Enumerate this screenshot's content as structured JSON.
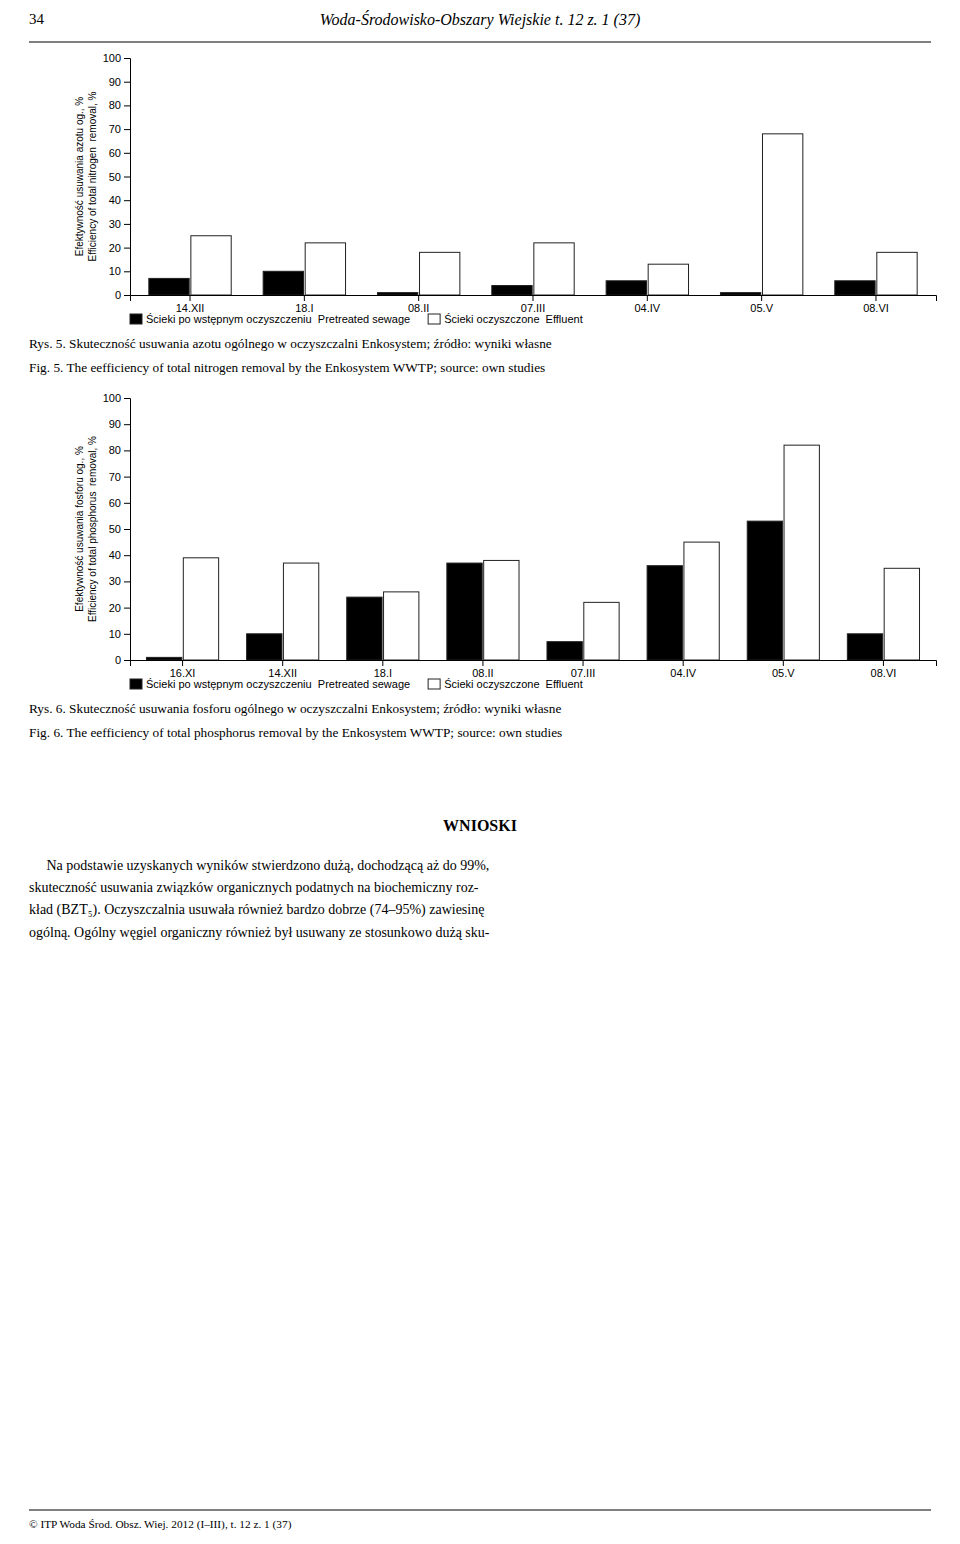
{
  "header": {
    "number": "34",
    "title": "Woda-Środowisko-Obszary Wiejskie t. 12 z. 1 (37)"
  },
  "chart_data": [
    {
      "type": "bar",
      "title": "Rys. 5. Skuteczność usuwania azotu ogólnego w oczyszczalni Enkosystem; źródło: wyniki własne",
      "subtitle": "Fig. 5. The eefficiency of total nitrogen removal by the Enkosystem WWTP; source: own studies",
      "ylabel": [
        "Efektywność usuwania azotu og., %",
        "Efficiency of total nitrogen  removal, %"
      ],
      "categories": [
        "14.XII",
        "18.I",
        "08.II",
        "07.III",
        "04.IV",
        "05.V",
        "08.VI"
      ],
      "series": [
        {
          "name": "Ścieki po wstępnym oczyszczeniu  Pretreated sewage",
          "color": "#000000",
          "values": [
            7,
            10,
            1,
            4,
            6,
            1,
            6
          ]
        },
        {
          "name": "Ścieki oczyszczone  Effluent",
          "color": "#ffffff",
          "values": [
            25,
            22,
            18,
            22,
            13,
            68,
            18
          ]
        }
      ],
      "ylim": [
        0,
        100
      ],
      "yticks": [
        0,
        10,
        20,
        30,
        40,
        50,
        60,
        70,
        80,
        90,
        100
      ],
      "grid": false,
      "legend": "bottom"
    },
    {
      "type": "bar",
      "title": "Rys. 6. Skuteczność usuwania fosforu ogólnego w oczyszczalni Enkosystem; źródło: wyniki własne",
      "subtitle": "Fig. 6. The eefficiency of total phosphorus removal by the Enkosystem WWTP; source: own studies",
      "ylabel": [
        "Efektywność usuwania fosforu og., %",
        "Efficiency of total phosphorus  removal, %"
      ],
      "categories": [
        "16.XI",
        "14.XII",
        "18.I",
        "08.II",
        "07.III",
        "04.IV",
        "05.V",
        "08.VI"
      ],
      "series": [
        {
          "name": "Ścieki po wstępnym oczyszczeniu  Pretreated sewage",
          "color": "#000000",
          "values": [
            1,
            10,
            24,
            37,
            7,
            36,
            53,
            10
          ]
        },
        {
          "name": "Ścieki oczyszczone  Effluent",
          "color": "#ffffff",
          "values": [
            39,
            37,
            26,
            38,
            22,
            45,
            82,
            35
          ]
        }
      ],
      "ylim": [
        0,
        100
      ],
      "yticks": [
        0,
        10,
        20,
        30,
        40,
        50,
        60,
        70,
        80,
        90,
        100
      ],
      "grid": false,
      "legend": "bottom"
    }
  ],
  "section": {
    "title": "WNIOSKI",
    "lines": [
      "     Na podstawie uzyskanych wyników stwierdzono dużą, dochodzącą aż do 99%,",
      "skuteczność usuwania związków organicznych podatnych na biochemiczny roz-",
      "kład (BZT₅). Oczyszczalnia usuwała również bardzo dobrze (74–95%) zawiesinę",
      "ogólną. Ogólny węgiel organiczny również był usuwany ze stosunkowo dużą sku-"
    ]
  },
  "footer": "© ITP Woda Środ. Obsz. Wiej. 2012 (I–III), t. 12 z. 1 (37)"
}
